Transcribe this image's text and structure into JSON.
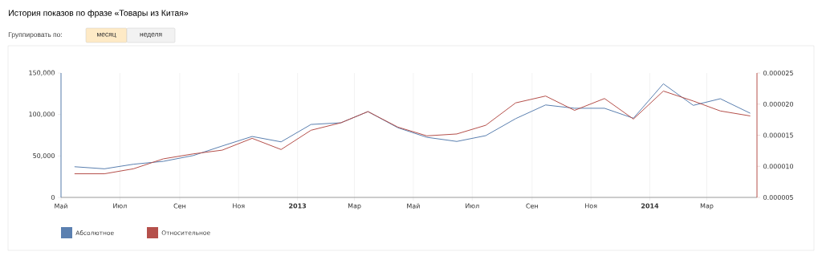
{
  "chart_data": {
    "type": "line",
    "title": "История показов по фразе «Товары из Китая»",
    "annotations": [
      "Группировать по:",
      "месяц",
      "неделя"
    ],
    "x": [
      "2012-05-15",
      "2012-06-15",
      "2012-07-15",
      "2012-08-15",
      "2012-09-15",
      "2012-10-15",
      "2012-11-15",
      "2012-12-15",
      "2013-01-15",
      "2013-02-15",
      "2013-03-15",
      "2013-04-15",
      "2013-05-15",
      "2013-06-15",
      "2013-07-15",
      "2013-08-15",
      "2013-09-15",
      "2013-10-15",
      "2013-11-15",
      "2013-12-15",
      "2014-01-15",
      "2014-02-15",
      "2014-03-15",
      "2014-04-15"
    ],
    "series": [
      {
        "name": "Абсолютное",
        "color": "#5b80b0",
        "values": [
          37000,
          34500,
          40000,
          43500,
          50500,
          62000,
          73500,
          67000,
          88000,
          90000,
          103500,
          84000,
          72500,
          67500,
          74500,
          95000,
          111500,
          107500,
          107500,
          95500,
          137000,
          111000,
          119000,
          101500
        ]
      },
      {
        "name": "Относительное",
        "color": "#b5504b",
        "axis": "y2",
        "values": [
          8.8e-06,
          8.8e-06,
          9.6e-06,
          1.12e-05,
          1.2e-05,
          1.26e-05,
          1.45e-05,
          1.27e-05,
          1.58e-05,
          1.7e-05,
          1.88e-05,
          1.63e-05,
          1.49e-05,
          1.52e-05,
          1.66e-05,
          2.02e-05,
          2.13e-05,
          1.9e-05,
          2.09e-05,
          1.76e-05,
          2.21e-05,
          2.05e-05,
          1.89e-05,
          1.81e-05
        ]
      }
    ],
    "xlim": [
      "2012-05-01",
      "2014-04-22"
    ],
    "xticks": [
      {
        "value": "2012-05-01",
        "label": "Май"
      },
      {
        "value": "2012-07-01",
        "label": "Июл"
      },
      {
        "value": "2012-09-01",
        "label": "Сен"
      },
      {
        "value": "2012-11-01",
        "label": "Ноя"
      },
      {
        "value": "2013-01-01",
        "label": "**2013**"
      },
      {
        "value": "2013-03-01",
        "label": "Мар"
      },
      {
        "value": "2013-05-01",
        "label": "Май"
      },
      {
        "value": "2013-07-01",
        "label": "Июл"
      },
      {
        "value": "2013-09-01",
        "label": "Сен"
      },
      {
        "value": "2013-11-01",
        "label": "Ноя"
      },
      {
        "value": "2014-01-01",
        "label": "**2014**"
      },
      {
        "value": "2014-03-01",
        "label": "Мар"
      }
    ],
    "ylim": [
      0,
      150000
    ],
    "yticks": [
      {
        "value": 0,
        "label": "0"
      },
      {
        "value": 50000,
        "label": "50,000"
      },
      {
        "value": 100000,
        "label": "100,000"
      },
      {
        "value": 150000,
        "label": "150,000"
      }
    ],
    "y2lim": [
      5e-06,
      2.5e-05
    ],
    "y2ticks": [
      {
        "value": 5e-06,
        "label": "0.000005"
      },
      {
        "value": 1e-05,
        "label": "0.000010"
      },
      {
        "value": 1.5e-05,
        "label": "0.000015"
      },
      {
        "value": 2e-05,
        "label": "0.000020"
      },
      {
        "value": 2.5e-05,
        "label": "0.000025"
      }
    ],
    "grid": "x",
    "legend": "bottom left",
    "line_style": "solid"
  }
}
